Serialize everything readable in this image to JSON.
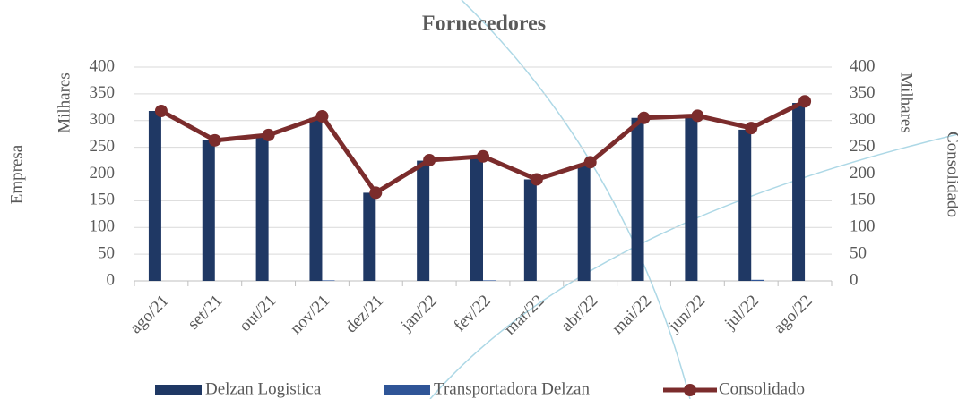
{
  "chart_data": {
    "type": "bar",
    "title": "Fornecedores",
    "y_axis_label": "Empresa",
    "y_axis_unit": "Milhares",
    "y2_axis_label": "Consolidado",
    "y2_axis_unit": "Milhares",
    "categories": [
      "ago/21",
      "set/21",
      "out/21",
      "nov/21",
      "dez/21",
      "jan/22",
      "fev/22",
      "mar/22",
      "abr/22",
      "mai/22",
      "jun/22",
      "jul/22",
      "ago/22"
    ],
    "series": [
      {
        "name": "Delzan Logistica",
        "type": "bar",
        "color": "#1f3864",
        "values": [
          318,
          263,
          270,
          305,
          165,
          225,
          233,
          190,
          218,
          305,
          308,
          283,
          333
        ]
      },
      {
        "name": "Transportadora Delzan",
        "type": "bar",
        "color": "#2f5597",
        "values": [
          0,
          0,
          0,
          1,
          0,
          0,
          1,
          0,
          0,
          0,
          0,
          2,
          0
        ]
      },
      {
        "name": "Consolidado",
        "type": "line",
        "axis": "y2",
        "color": "#7b2c2c",
        "values": [
          318,
          263,
          273,
          308,
          165,
          226,
          233,
          190,
          222,
          305,
          309,
          286,
          336
        ]
      }
    ],
    "ylim": [
      0,
      400
    ],
    "yticks": [
      0,
      50,
      100,
      150,
      200,
      250,
      300,
      350,
      400
    ],
    "y2lim": [
      0,
      400
    ],
    "y2ticks": [
      0,
      50,
      100,
      150,
      200,
      250,
      300,
      350,
      400
    ],
    "grid": true,
    "legend": "bottom"
  }
}
